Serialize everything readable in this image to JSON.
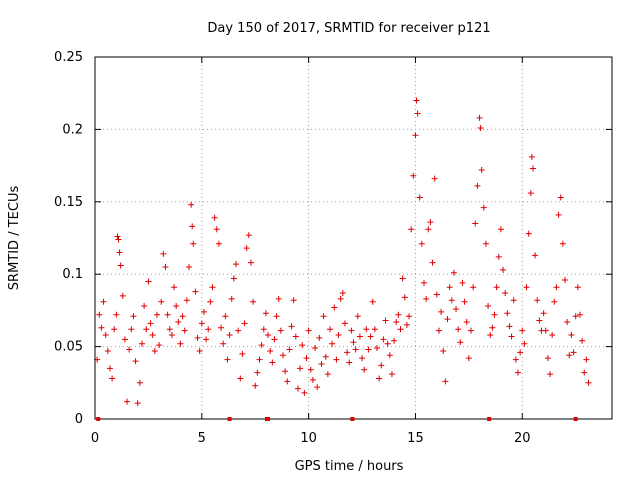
{
  "chart_data": {
    "type": "scatter",
    "title": "Day 150 of 2017, SRMTID for receiver p121",
    "xlabel": "GPS time / hours",
    "ylabel": "SRMTID / TECUs",
    "xlim": [
      0,
      24.2
    ],
    "ylim": [
      0,
      0.25
    ],
    "x_ticks": [
      0,
      5,
      10,
      15,
      20
    ],
    "x_tick_labels": [
      "0",
      "5",
      "10",
      "15",
      "20"
    ],
    "y_ticks": [
      0,
      0.05,
      0.1,
      0.15,
      0.2,
      0.25
    ],
    "y_tick_labels": [
      "0",
      "0.05",
      "0.1",
      "0.15",
      "0.2",
      "0.25"
    ],
    "grid": true,
    "marker": "+",
    "color": "#e00000",
    "series": [
      {
        "name": "SRMTID",
        "points": [
          [
            0.1,
            0.041
          ],
          [
            0.2,
            0.072
          ],
          [
            0.3,
            0.063
          ],
          [
            0.4,
            0.081
          ],
          [
            0.5,
            0.058
          ],
          [
            0.6,
            0.047
          ],
          [
            0.7,
            0.035
          ],
          [
            0.8,
            0.028
          ],
          [
            0.9,
            0.062
          ],
          [
            1.0,
            0.072
          ],
          [
            1.05,
            0.126
          ],
          [
            1.1,
            0.124
          ],
          [
            1.15,
            0.115
          ],
          [
            1.2,
            0.106
          ],
          [
            1.3,
            0.085
          ],
          [
            1.4,
            0.055
          ],
          [
            1.5,
            0.012
          ],
          [
            1.6,
            0.048
          ],
          [
            1.7,
            0.062
          ],
          [
            1.8,
            0.071
          ],
          [
            1.9,
            0.04
          ],
          [
            2.0,
            0.011
          ],
          [
            2.1,
            0.025
          ],
          [
            2.2,
            0.052
          ],
          [
            2.3,
            0.078
          ],
          [
            2.4,
            0.062
          ],
          [
            2.5,
            0.095
          ],
          [
            2.6,
            0.066
          ],
          [
            2.7,
            0.058
          ],
          [
            2.8,
            0.047
          ],
          [
            2.9,
            0.072
          ],
          [
            3.0,
            0.051
          ],
          [
            3.1,
            0.081
          ],
          [
            3.2,
            0.114
          ],
          [
            3.3,
            0.105
          ],
          [
            3.4,
            0.072
          ],
          [
            3.5,
            0.062
          ],
          [
            3.6,
            0.058
          ],
          [
            3.7,
            0.091
          ],
          [
            3.8,
            0.078
          ],
          [
            3.9,
            0.067
          ],
          [
            4.0,
            0.052
          ],
          [
            4.1,
            0.071
          ],
          [
            4.2,
            0.061
          ],
          [
            4.3,
            0.082
          ],
          [
            4.4,
            0.105
          ],
          [
            4.5,
            0.148
          ],
          [
            4.55,
            0.133
          ],
          [
            4.6,
            0.121
          ],
          [
            4.7,
            0.088
          ],
          [
            4.8,
            0.056
          ],
          [
            4.9,
            0.047
          ],
          [
            5.0,
            0.066
          ],
          [
            5.1,
            0.074
          ],
          [
            5.2,
            0.055
          ],
          [
            5.3,
            0.062
          ],
          [
            5.4,
            0.081
          ],
          [
            5.5,
            0.091
          ],
          [
            5.6,
            0.139
          ],
          [
            5.7,
            0.131
          ],
          [
            5.8,
            0.121
          ],
          [
            5.9,
            0.063
          ],
          [
            6.0,
            0.052
          ],
          [
            6.1,
            0.071
          ],
          [
            6.2,
            0.041
          ],
          [
            6.3,
            0.058
          ],
          [
            6.4,
            0.083
          ],
          [
            6.5,
            0.097
          ],
          [
            6.6,
            0.107
          ],
          [
            6.7,
            0.061
          ],
          [
            6.8,
            0.028
          ],
          [
            6.9,
            0.045
          ],
          [
            7.0,
            0.066
          ],
          [
            7.1,
            0.118
          ],
          [
            7.2,
            0.127
          ],
          [
            7.3,
            0.108
          ],
          [
            7.4,
            0.081
          ],
          [
            7.5,
            0.023
          ],
          [
            7.6,
            0.032
          ],
          [
            7.7,
            0.041
          ],
          [
            7.8,
            0.051
          ],
          [
            7.9,
            0.062
          ],
          [
            8.0,
            0.073
          ],
          [
            8.1,
            0.058
          ],
          [
            8.2,
            0.047
          ],
          [
            8.3,
            0.039
          ],
          [
            8.4,
            0.055
          ],
          [
            8.5,
            0.071
          ],
          [
            8.6,
            0.083
          ],
          [
            8.7,
            0.061
          ],
          [
            8.8,
            0.044
          ],
          [
            8.9,
            0.033
          ],
          [
            9.0,
            0.026
          ],
          [
            9.1,
            0.048
          ],
          [
            9.2,
            0.064
          ],
          [
            9.3,
            0.082
          ],
          [
            9.4,
            0.057
          ],
          [
            9.5,
            0.021
          ],
          [
            9.6,
            0.035
          ],
          [
            9.7,
            0.051
          ],
          [
            9.8,
            0.018
          ],
          [
            9.9,
            0.042
          ],
          [
            10.0,
            0.061
          ],
          [
            10.1,
            0.034
          ],
          [
            10.2,
            0.027
          ],
          [
            10.3,
            0.049
          ],
          [
            10.4,
            0.022
          ],
          [
            10.5,
            0.056
          ],
          [
            10.6,
            0.038
          ],
          [
            10.7,
            0.071
          ],
          [
            10.8,
            0.043
          ],
          [
            10.9,
            0.031
          ],
          [
            11.0,
            0.062
          ],
          [
            11.1,
            0.052
          ],
          [
            11.2,
            0.077
          ],
          [
            11.3,
            0.041
          ],
          [
            11.4,
            0.058
          ],
          [
            11.5,
            0.083
          ],
          [
            11.6,
            0.087
          ],
          [
            11.7,
            0.066
          ],
          [
            11.8,
            0.046
          ],
          [
            11.9,
            0.039
          ],
          [
            12.0,
            0.061
          ],
          [
            12.1,
            0.053
          ],
          [
            12.2,
            0.048
          ],
          [
            12.3,
            0.071
          ],
          [
            12.4,
            0.057
          ],
          [
            12.5,
            0.042
          ],
          [
            12.6,
            0.034
          ],
          [
            12.7,
            0.062
          ],
          [
            12.8,
            0.048
          ],
          [
            12.9,
            0.057
          ],
          [
            13.0,
            0.081
          ],
          [
            13.1,
            0.062
          ],
          [
            13.2,
            0.049
          ],
          [
            13.3,
            0.028
          ],
          [
            13.4,
            0.037
          ],
          [
            13.5,
            0.055
          ],
          [
            13.6,
            0.068
          ],
          [
            13.7,
            0.052
          ],
          [
            13.8,
            0.044
          ],
          [
            13.9,
            0.031
          ],
          [
            14.0,
            0.054
          ],
          [
            14.1,
            0.067
          ],
          [
            14.2,
            0.072
          ],
          [
            14.3,
            0.062
          ],
          [
            14.4,
            0.097
          ],
          [
            14.5,
            0.084
          ],
          [
            14.6,
            0.065
          ],
          [
            14.7,
            0.071
          ],
          [
            14.8,
            0.131
          ],
          [
            14.9,
            0.168
          ],
          [
            15.0,
            0.196
          ],
          [
            15.05,
            0.22
          ],
          [
            15.1,
            0.211
          ],
          [
            15.2,
            0.153
          ],
          [
            15.3,
            0.121
          ],
          [
            15.4,
            0.094
          ],
          [
            15.5,
            0.083
          ],
          [
            15.6,
            0.131
          ],
          [
            15.7,
            0.136
          ],
          [
            15.8,
            0.108
          ],
          [
            15.9,
            0.166
          ],
          [
            16.0,
            0.086
          ],
          [
            16.1,
            0.061
          ],
          [
            16.2,
            0.074
          ],
          [
            16.3,
            0.047
          ],
          [
            16.4,
            0.026
          ],
          [
            16.5,
            0.069
          ],
          [
            16.6,
            0.091
          ],
          [
            16.7,
            0.082
          ],
          [
            16.8,
            0.101
          ],
          [
            16.9,
            0.076
          ],
          [
            17.0,
            0.062
          ],
          [
            17.1,
            0.053
          ],
          [
            17.2,
            0.094
          ],
          [
            17.3,
            0.081
          ],
          [
            17.4,
            0.067
          ],
          [
            17.5,
            0.042
          ],
          [
            17.6,
            0.061
          ],
          [
            17.7,
            0.091
          ],
          [
            17.8,
            0.135
          ],
          [
            17.9,
            0.161
          ],
          [
            18.0,
            0.208
          ],
          [
            18.05,
            0.201
          ],
          [
            18.1,
            0.172
          ],
          [
            18.2,
            0.146
          ],
          [
            18.3,
            0.121
          ],
          [
            18.4,
            0.078
          ],
          [
            18.5,
            0.058
          ],
          [
            18.6,
            0.063
          ],
          [
            18.7,
            0.072
          ],
          [
            18.8,
            0.091
          ],
          [
            18.9,
            0.112
          ],
          [
            19.0,
            0.131
          ],
          [
            19.1,
            0.103
          ],
          [
            19.2,
            0.087
          ],
          [
            19.3,
            0.073
          ],
          [
            19.4,
            0.064
          ],
          [
            19.5,
            0.057
          ],
          [
            19.6,
            0.082
          ],
          [
            19.7,
            0.041
          ],
          [
            19.8,
            0.032
          ],
          [
            19.9,
            0.046
          ],
          [
            20.0,
            0.061
          ],
          [
            20.1,
            0.052
          ],
          [
            20.2,
            0.091
          ],
          [
            20.3,
            0.128
          ],
          [
            20.4,
            0.156
          ],
          [
            20.45,
            0.181
          ],
          [
            20.5,
            0.173
          ],
          [
            20.6,
            0.113
          ],
          [
            20.7,
            0.082
          ],
          [
            20.8,
            0.068
          ],
          [
            20.9,
            0.061
          ],
          [
            21.0,
            0.073
          ],
          [
            21.1,
            0.061
          ],
          [
            21.2,
            0.042
          ],
          [
            21.3,
            0.031
          ],
          [
            21.4,
            0.058
          ],
          [
            21.5,
            0.081
          ],
          [
            21.6,
            0.091
          ],
          [
            21.7,
            0.141
          ],
          [
            21.8,
            0.153
          ],
          [
            21.9,
            0.121
          ],
          [
            22.0,
            0.096
          ],
          [
            22.1,
            0.067
          ],
          [
            22.2,
            0.044
          ],
          [
            22.3,
            0.058
          ],
          [
            22.4,
            0.046
          ],
          [
            22.5,
            0.071
          ],
          [
            22.6,
            0.091
          ],
          [
            22.7,
            0.072
          ],
          [
            22.8,
            0.054
          ],
          [
            22.9,
            0.032
          ],
          [
            23.0,
            0.041
          ],
          [
            23.1,
            0.025
          ]
        ]
      }
    ],
    "gap_markers_x": [
      0.15,
      6.3,
      8.05,
      8.1,
      12.05,
      18.45,
      22.5
    ]
  }
}
